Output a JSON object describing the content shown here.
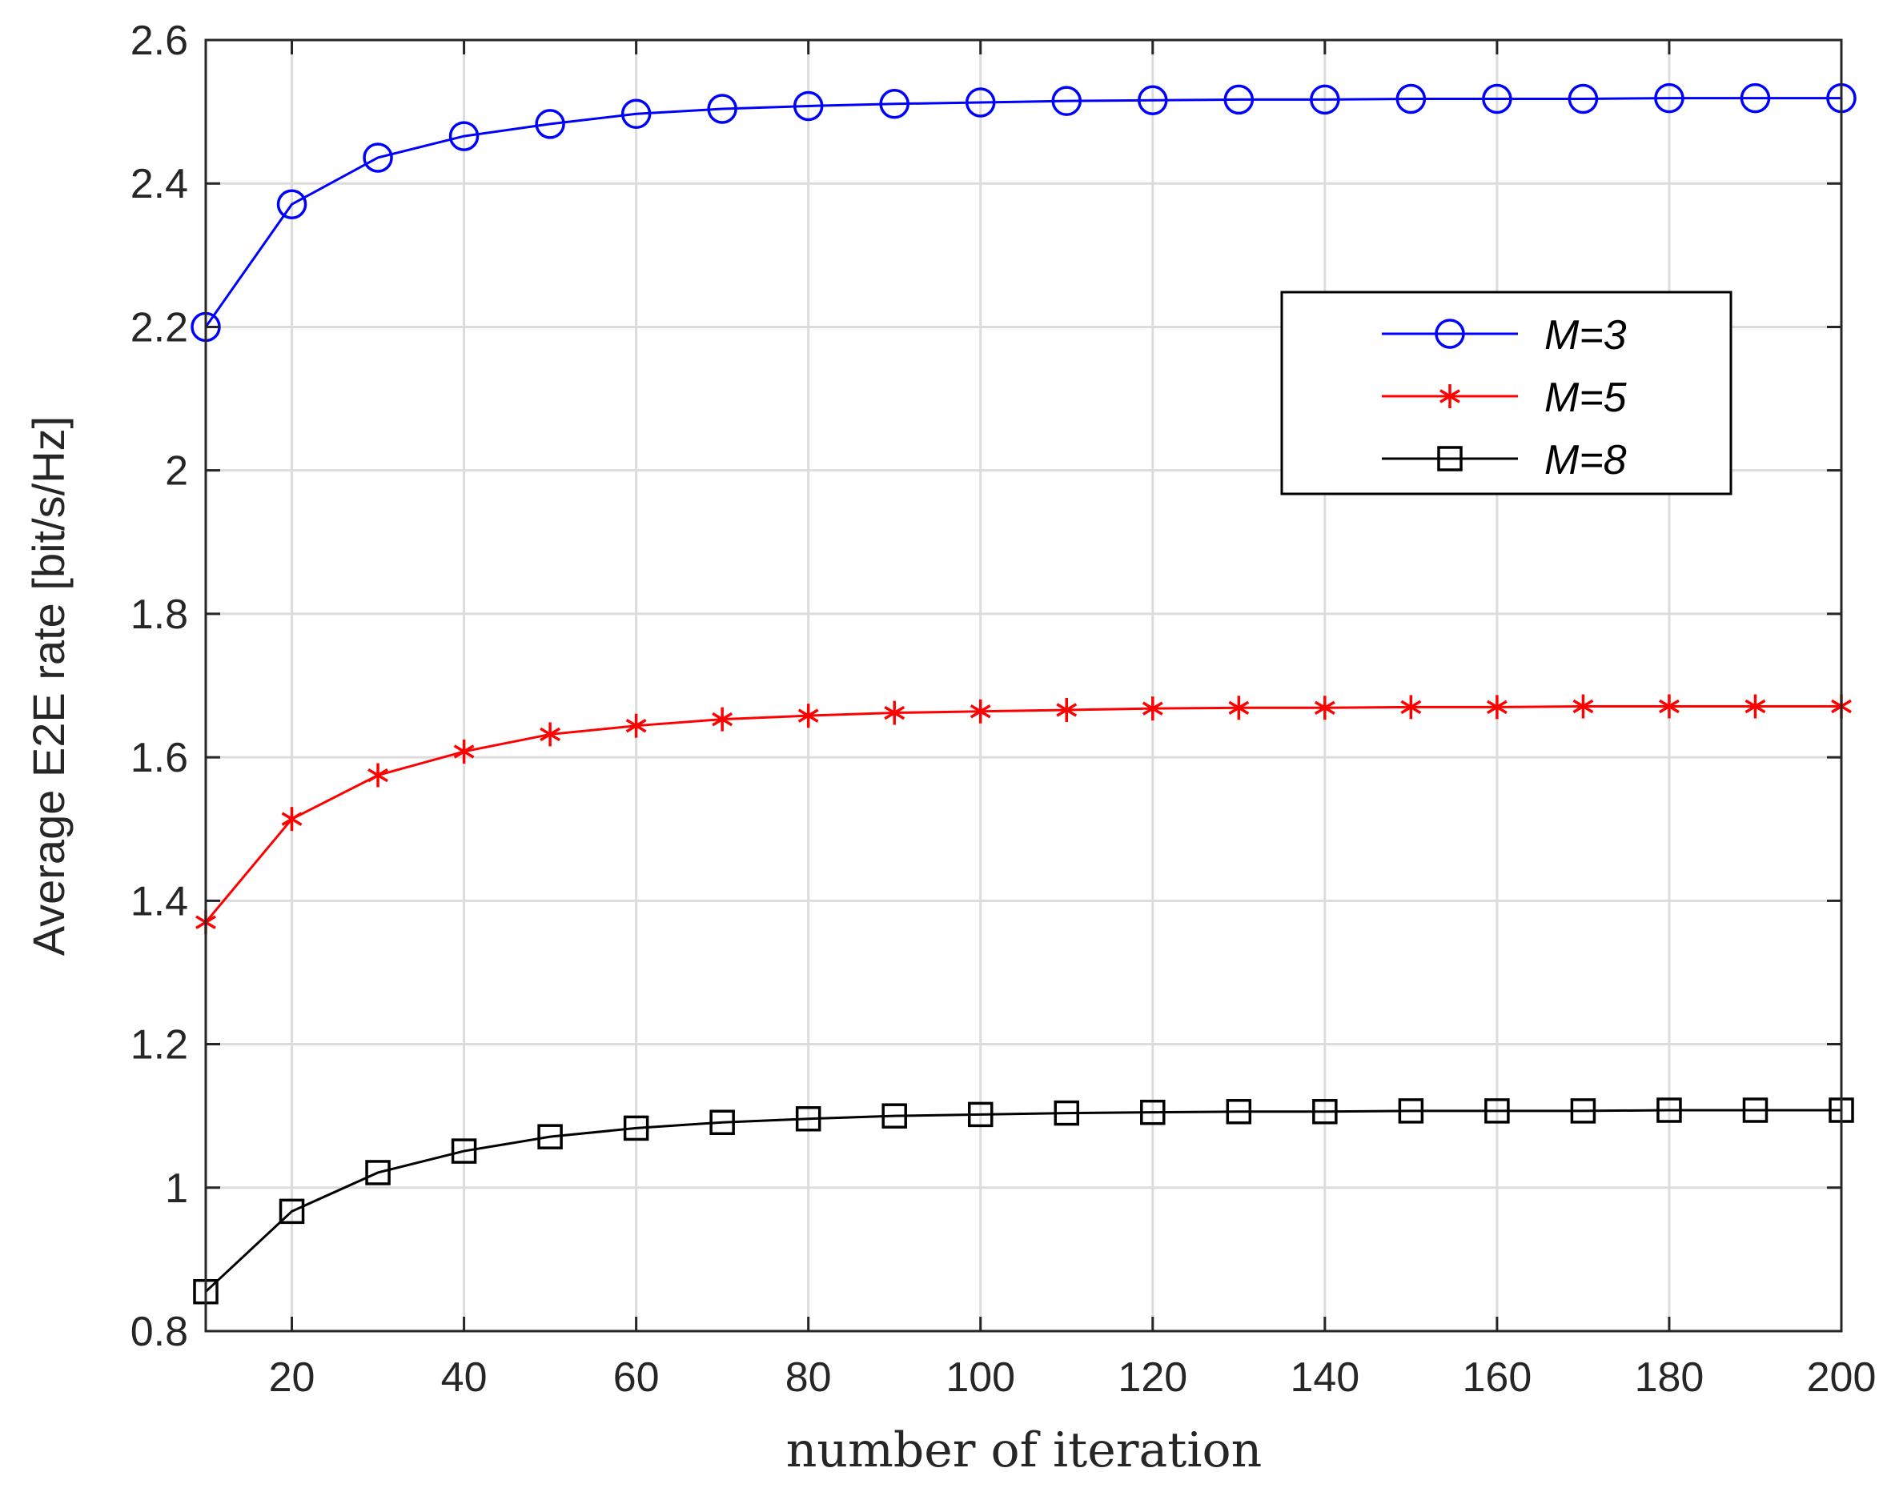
{
  "chart_data": {
    "type": "line",
    "xlabel": "number of iteration",
    "ylabel": "Average E2E rate [bit/s/Hz]",
    "xlim": [
      10,
      200
    ],
    "ylim": [
      0.8,
      2.6
    ],
    "grid": true,
    "legend_position": "upper-right",
    "x": [
      10,
      20,
      30,
      40,
      50,
      60,
      70,
      80,
      90,
      100,
      110,
      120,
      130,
      140,
      150,
      160,
      170,
      180,
      190,
      200
    ],
    "xticks": [
      20,
      40,
      60,
      80,
      100,
      120,
      140,
      160,
      180,
      200
    ],
    "xtick_labels": [
      "20",
      "40",
      "60",
      "80",
      "100",
      "120",
      "140",
      "160",
      "180",
      "200"
    ],
    "yticks": [
      0.8,
      1.0,
      1.2,
      1.4,
      1.6,
      1.8,
      2.0,
      2.2,
      2.4,
      2.6
    ],
    "ytick_labels": [
      "0.8",
      "1",
      "1.2",
      "1.4",
      "1.6",
      "1.8",
      "2",
      "2.2",
      "2.4",
      "2.6"
    ],
    "series": [
      {
        "name": "M=3",
        "color": "#0000ff",
        "marker": "circle",
        "values": [
          2.2,
          2.371,
          2.436,
          2.466,
          2.483,
          2.497,
          2.504,
          2.508,
          2.511,
          2.513,
          2.515,
          2.516,
          2.517,
          2.517,
          2.518,
          2.518,
          2.518,
          2.519,
          2.519,
          2.519
        ]
      },
      {
        "name": "M=5",
        "color": "#ff0000",
        "marker": "asterisk",
        "values": [
          1.37,
          1.514,
          1.575,
          1.608,
          1.632,
          1.644,
          1.653,
          1.658,
          1.662,
          1.664,
          1.666,
          1.668,
          1.669,
          1.669,
          1.67,
          1.67,
          1.671,
          1.671,
          1.671,
          1.671
        ]
      },
      {
        "name": "M=8",
        "color": "#000000",
        "marker": "square",
        "values": [
          0.855,
          0.967,
          1.021,
          1.051,
          1.071,
          1.083,
          1.091,
          1.096,
          1.1,
          1.102,
          1.104,
          1.105,
          1.106,
          1.106,
          1.107,
          1.107,
          1.107,
          1.108,
          1.108,
          1.108
        ]
      }
    ]
  }
}
